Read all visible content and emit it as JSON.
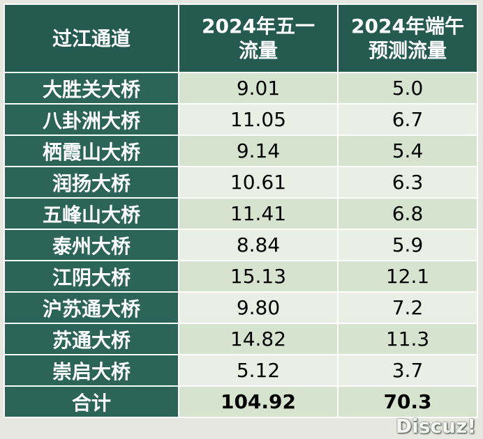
{
  "table": {
    "headers": [
      "过江通道",
      "2024年五一流量",
      "2024年端午预测流量"
    ],
    "header_lines": [
      [
        "过江通道"
      ],
      [
        "2024年五一",
        "流量"
      ],
      [
        "2024年端午",
        "预测流量"
      ]
    ],
    "rows": [
      {
        "name": "大胜关大桥",
        "mayday": "9.01",
        "dragon": "5.0"
      },
      {
        "name": "八卦洲大桥",
        "mayday": "11.05",
        "dragon": "6.7"
      },
      {
        "name": "栖霞山大桥",
        "mayday": "9.14",
        "dragon": "5.4"
      },
      {
        "name": "润扬大桥",
        "mayday": "10.61",
        "dragon": "6.3"
      },
      {
        "name": "五峰山大桥",
        "mayday": "11.41",
        "dragon": "6.8"
      },
      {
        "name": "泰州大桥",
        "mayday": "8.84",
        "dragon": "5.9"
      },
      {
        "name": "江阴大桥",
        "mayday": "15.13",
        "dragon": "12.1"
      },
      {
        "name": "沪苏通大桥",
        "mayday": "9.80",
        "dragon": "7.2"
      },
      {
        "name": "苏通大桥",
        "mayday": "14.82",
        "dragon": "11.3"
      },
      {
        "name": "崇启大桥",
        "mayday": "5.12",
        "dragon": "3.7"
      }
    ],
    "total": {
      "name": "合计",
      "mayday": "104.92",
      "dragon": "70.3"
    }
  },
  "watermark": "Discuz!",
  "colors": {
    "header_bg": "#245a50",
    "name_bg": "#2c6558",
    "row_odd": "#d6e3cf",
    "row_even": "#e9efe4"
  }
}
